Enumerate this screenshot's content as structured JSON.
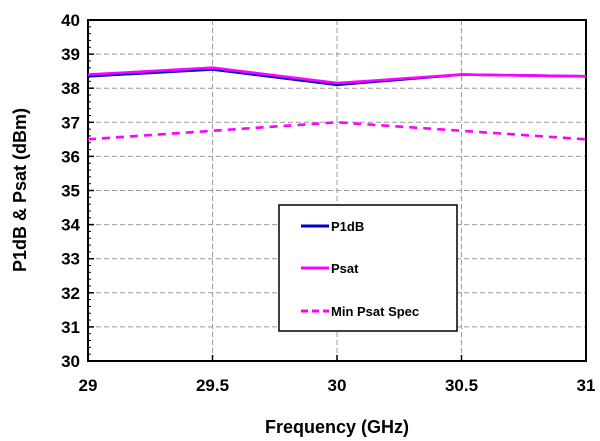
{
  "chart_data": {
    "type": "line",
    "title": "",
    "xlabel": "Frequency (GHz)",
    "ylabel": "P1dB & Psat (dBm)",
    "xlim": [
      29,
      31
    ],
    "ylim": [
      30,
      40
    ],
    "xticks": [
      "29",
      "29.5",
      "30",
      "30.5",
      "31"
    ],
    "yticks": [
      "30",
      "31",
      "32",
      "33",
      "34",
      "35",
      "36",
      "37",
      "38",
      "39",
      "40"
    ],
    "grid": true,
    "legend_position": "bottom-center",
    "series": [
      {
        "name": "P1dB",
        "color": "#0000cc",
        "style": "solid",
        "x": [
          29,
          29.5,
          30,
          30.5,
          31
        ],
        "y": [
          38.35,
          38.55,
          38.1,
          38.4,
          38.35
        ]
      },
      {
        "name": "Psat",
        "color": "#ff00ff",
        "style": "solid",
        "x": [
          29,
          29.5,
          30,
          30.5,
          31
        ],
        "y": [
          38.4,
          38.6,
          38.15,
          38.4,
          38.35
        ]
      },
      {
        "name": "Min Psat Spec",
        "color": "#ff00ff",
        "style": "dashed",
        "x": [
          29,
          29.5,
          30,
          30.5,
          31
        ],
        "y": [
          36.5,
          36.75,
          37.0,
          36.75,
          36.5
        ]
      }
    ]
  }
}
